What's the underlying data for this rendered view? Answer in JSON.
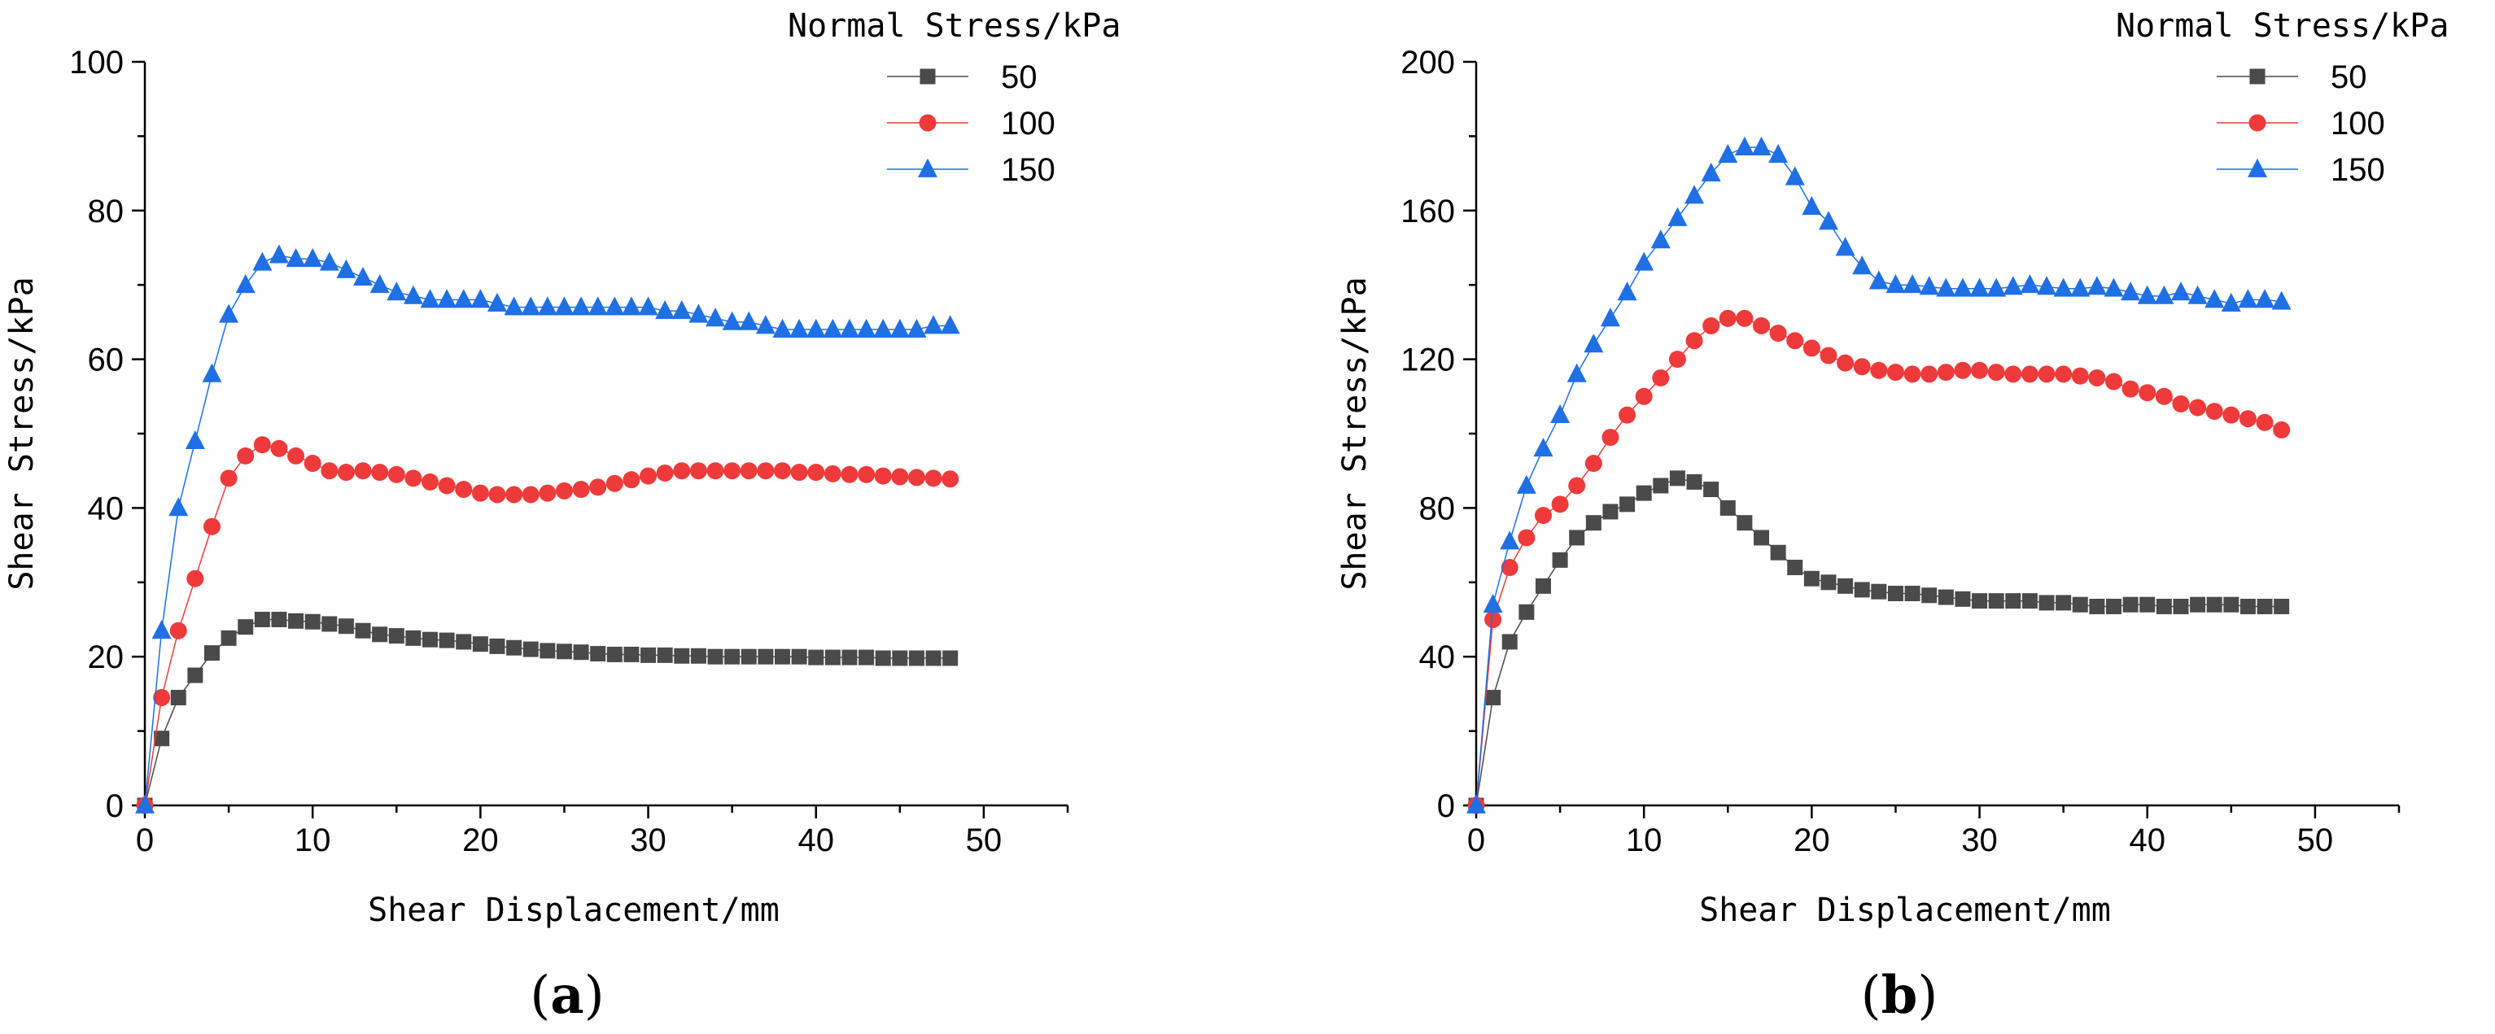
{
  "chart_data": [
    {
      "type": "scatter",
      "panel_label": "(a)",
      "title": "",
      "xlabel": "Shear Displacement/mm",
      "ylabel": "Shear Stress/kPa",
      "xlim": [
        0,
        55
      ],
      "ylim": [
        0,
        100
      ],
      "xticks": [
        0,
        10,
        20,
        30,
        40,
        50
      ],
      "yticks": [
        0,
        20,
        40,
        60,
        80,
        100
      ],
      "legend_title": "Normal Stress/kPa",
      "legend_position": "top-right",
      "series": [
        {
          "name": "50",
          "marker": "square",
          "color": "#4a4a4a",
          "x": [
            0,
            1,
            2,
            3,
            4,
            5,
            6,
            7,
            8,
            9,
            10,
            11,
            12,
            13,
            14,
            15,
            16,
            17,
            18,
            19,
            20,
            21,
            22,
            23,
            24,
            25,
            26,
            27,
            28,
            29,
            30,
            31,
            32,
            33,
            34,
            35,
            36,
            37,
            38,
            39,
            40,
            41,
            42,
            43,
            44,
            45,
            46,
            47,
            48
          ],
          "y": [
            0,
            9,
            14.5,
            17.5,
            20.5,
            22.5,
            24,
            25,
            25,
            24.8,
            24.7,
            24.4,
            24.1,
            23.5,
            23,
            22.8,
            22.5,
            22.3,
            22.2,
            22,
            21.7,
            21.4,
            21.2,
            21,
            20.8,
            20.7,
            20.6,
            20.4,
            20.3,
            20.3,
            20.2,
            20.2,
            20.1,
            20.1,
            20,
            20,
            20,
            20,
            20,
            20,
            19.9,
            19.9,
            19.9,
            19.9,
            19.8,
            19.8,
            19.8,
            19.8,
            19.8
          ]
        },
        {
          "name": "100",
          "marker": "circle",
          "color": "#ee3a3a",
          "x": [
            0,
            1,
            2,
            3,
            4,
            5,
            6,
            7,
            8,
            9,
            10,
            11,
            12,
            13,
            14,
            15,
            16,
            17,
            18,
            19,
            20,
            21,
            22,
            23,
            24,
            25,
            26,
            27,
            28,
            29,
            30,
            31,
            32,
            33,
            34,
            35,
            36,
            37,
            38,
            39,
            40,
            41,
            42,
            43,
            44,
            45,
            46,
            47,
            48
          ],
          "y": [
            0,
            14.5,
            23.5,
            30.5,
            37.5,
            44,
            47,
            48.5,
            48,
            47,
            46,
            45,
            44.8,
            45,
            44.8,
            44.5,
            44,
            43.5,
            43,
            42.5,
            42,
            41.8,
            41.8,
            41.8,
            42,
            42.3,
            42.5,
            42.8,
            43.3,
            43.8,
            44.3,
            44.7,
            45,
            45,
            45,
            45,
            45,
            45,
            45,
            44.8,
            44.8,
            44.6,
            44.5,
            44.5,
            44.3,
            44.2,
            44.1,
            44,
            43.9
          ]
        },
        {
          "name": "150",
          "marker": "triangle",
          "color": "#1f6fe5",
          "x": [
            0,
            1,
            2,
            3,
            4,
            5,
            6,
            7,
            8,
            9,
            10,
            11,
            12,
            13,
            14,
            15,
            16,
            17,
            18,
            19,
            20,
            21,
            22,
            23,
            24,
            25,
            26,
            27,
            28,
            29,
            30,
            31,
            32,
            33,
            34,
            35,
            36,
            37,
            38,
            39,
            40,
            41,
            42,
            43,
            44,
            45,
            46,
            47,
            48
          ],
          "y": [
            0,
            23.5,
            40,
            49,
            58,
            66,
            70,
            73,
            74,
            73.5,
            73.5,
            73,
            72,
            71,
            70,
            69,
            68.5,
            68,
            68,
            68,
            68,
            67.5,
            67,
            67,
            67,
            67,
            67,
            67,
            67,
            67,
            67,
            66.5,
            66.5,
            66,
            65.5,
            65,
            65,
            64.5,
            64,
            64,
            64,
            64,
            64,
            64,
            64,
            64,
            64,
            64.5,
            64.5
          ]
        }
      ]
    },
    {
      "type": "scatter",
      "panel_label": "(b)",
      "title": "",
      "xlabel": "Shear Displacement/mm",
      "ylabel": "Shear Stress/kPa",
      "xlim": [
        0,
        55
      ],
      "ylim": [
        0,
        200
      ],
      "xticks": [
        0,
        10,
        20,
        30,
        40,
        50
      ],
      "yticks": [
        0,
        40,
        80,
        120,
        160,
        200
      ],
      "legend_title": "Normal Stress/kPa",
      "legend_position": "top-right",
      "series": [
        {
          "name": "50",
          "marker": "square",
          "color": "#4a4a4a",
          "x": [
            0,
            1,
            2,
            3,
            4,
            5,
            6,
            7,
            8,
            9,
            10,
            11,
            12,
            13,
            14,
            15,
            16,
            17,
            18,
            19,
            20,
            21,
            22,
            23,
            24,
            25,
            26,
            27,
            28,
            29,
            30,
            31,
            32,
            33,
            34,
            35,
            36,
            37,
            38,
            39,
            40,
            41,
            42,
            43,
            44,
            45,
            46,
            47,
            48
          ],
          "y": [
            0,
            29,
            44,
            52,
            59,
            66,
            72,
            76,
            79,
            81,
            84,
            86,
            88,
            87,
            85,
            80,
            76,
            72,
            68,
            64,
            61,
            60,
            59,
            58,
            57.5,
            57,
            57,
            56.5,
            56,
            55.5,
            55,
            55,
            55,
            55,
            54.5,
            54.5,
            54,
            53.5,
            53.5,
            54,
            54,
            53.5,
            53.5,
            54,
            54,
            54,
            53.5,
            53.5,
            53.5
          ]
        },
        {
          "name": "100",
          "marker": "circle",
          "color": "#ee3a3a",
          "x": [
            0,
            1,
            2,
            3,
            4,
            5,
            6,
            7,
            8,
            9,
            10,
            11,
            12,
            13,
            14,
            15,
            16,
            17,
            18,
            19,
            20,
            21,
            22,
            23,
            24,
            25,
            26,
            27,
            28,
            29,
            30,
            31,
            32,
            33,
            34,
            35,
            36,
            37,
            38,
            39,
            40,
            41,
            42,
            43,
            44,
            45,
            46,
            47,
            48
          ],
          "y": [
            0,
            50,
            64,
            72,
            78,
            81,
            86,
            92,
            99,
            105,
            110,
            115,
            120,
            125,
            129,
            131,
            131,
            129,
            127,
            125,
            123,
            121,
            119,
            118,
            117,
            116.5,
            116,
            116,
            116.5,
            117,
            117,
            116.5,
            116,
            116,
            116,
            116,
            115.5,
            115,
            114,
            112,
            111,
            110,
            108,
            107,
            106,
            105,
            104,
            103,
            101
          ]
        },
        {
          "name": "150",
          "marker": "triangle",
          "color": "#1f6fe5",
          "x": [
            0,
            1,
            2,
            3,
            4,
            5,
            6,
            7,
            8,
            9,
            10,
            11,
            12,
            13,
            14,
            15,
            16,
            17,
            18,
            19,
            20,
            21,
            22,
            23,
            24,
            25,
            26,
            27,
            28,
            29,
            30,
            31,
            32,
            33,
            34,
            35,
            36,
            37,
            38,
            39,
            40,
            41,
            42,
            43,
            44,
            45,
            46,
            47,
            48
          ],
          "y": [
            0,
            54,
            71,
            86,
            96,
            105,
            116,
            124,
            131,
            138,
            146,
            152,
            158,
            164,
            170,
            175,
            177,
            177,
            175,
            169,
            161,
            157,
            150,
            145,
            141,
            140,
            140,
            139.5,
            139,
            139,
            139,
            139,
            139.5,
            140,
            139.5,
            139,
            139,
            139.5,
            139,
            138,
            137,
            137,
            138,
            137,
            136,
            135,
            136,
            136,
            135.5
          ]
        }
      ]
    }
  ]
}
